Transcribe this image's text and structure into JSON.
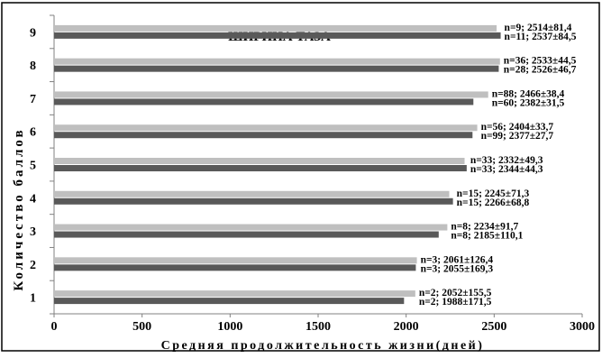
{
  "chart_data": {
    "type": "bar",
    "orientation": "horizontal",
    "title": "ШИРИНА ТАЗА",
    "xlabel": "Средняя продолжительность жизни(дней)",
    "ylabel": "Количество баллов",
    "xlim": [
      0,
      3000
    ],
    "x_ticks": [
      "0",
      "500",
      "1000",
      "1500",
      "2000",
      "2500",
      "3000"
    ],
    "categories": [
      "1",
      "2",
      "3",
      "4",
      "5",
      "6",
      "7",
      "8",
      "9"
    ],
    "grid": false,
    "legend": "none",
    "colors": {
      "light": "#bfbfbf",
      "dark": "#595959",
      "axis": "#808080",
      "frame": "#000000"
    },
    "series": [
      {
        "values": [
          2052,
          2061,
          2234,
          2245,
          2332,
          2404,
          2466,
          2533,
          2514
        ],
        "labels": [
          "n=2; 2052±155,5",
          "n=3; 2061±126,4",
          "n=8; 2234±91,7",
          "n=15; 2245±71,3",
          "n=33; 2332±49,3",
          "n=56; 2404±33,7",
          "n=88; 2466±38,4",
          "n=36; 2533±44,5",
          "n=9; 2514±81,4"
        ]
      },
      {
        "values": [
          1988,
          2055,
          2185,
          2266,
          2344,
          2377,
          2382,
          2526,
          2537
        ],
        "labels": [
          "n=2; 1988±171,5",
          "n=3; 2055±169,3",
          "n=8; 2185±110,1",
          "n=15; 2266±68,8",
          "n=33; 2344±44,3",
          "n=99; 2377±27,7",
          "n=60; 2382±31,5",
          "n=28; 2526±46,7",
          "n=11; 2537±84,5"
        ]
      }
    ]
  }
}
